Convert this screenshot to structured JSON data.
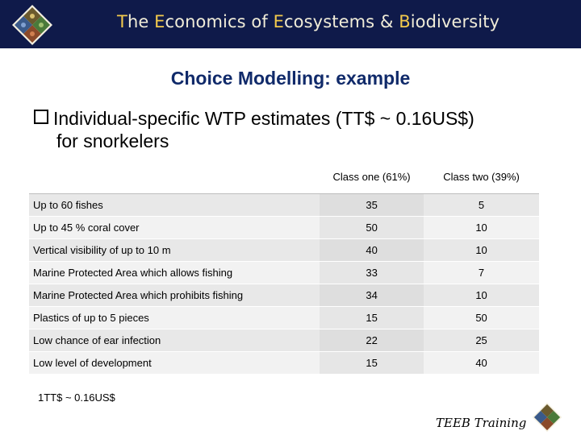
{
  "header": {
    "title_parts": [
      {
        "text": "T",
        "accent": true
      },
      {
        "text": "he ",
        "accent": false
      },
      {
        "text": "E",
        "accent": true
      },
      {
        "text": "conomics of ",
        "accent": false
      },
      {
        "text": "E",
        "accent": true
      },
      {
        "text": "cosystems & ",
        "accent": false
      },
      {
        "text": "B",
        "accent": true
      },
      {
        "text": "iodiversity",
        "accent": false
      }
    ],
    "logo_icon": "teeb-diamond-logo-icon"
  },
  "slide": {
    "title": "Choice Modelling: example",
    "bullet_line1": "Individual-specific WTP estimates (TT$ ~ 0.16US$)",
    "bullet_line2": "for snorkelers"
  },
  "table": {
    "columns": [
      "",
      "Class one (61%)",
      "Class two (39%)"
    ],
    "rows": [
      {
        "label": "Up to 60 fishes",
        "class_one": "35",
        "class_two": "5"
      },
      {
        "label": "Up to 45 % coral cover",
        "class_one": "50",
        "class_two": "10"
      },
      {
        "label": "Vertical visibility of up to 10 m",
        "class_one": "40",
        "class_two": "10"
      },
      {
        "label": "Marine Protected Area which allows fishing",
        "class_one": "33",
        "class_two": "7"
      },
      {
        "label": "Marine Protected Area which prohibits fishing",
        "class_one": "34",
        "class_two": "10"
      },
      {
        "label": "Plastics of up to 5 pieces",
        "class_one": "15",
        "class_two": "50"
      },
      {
        "label": "Low chance of ear infection",
        "class_one": "22",
        "class_two": "25"
      },
      {
        "label": "Low level of development",
        "class_one": "15",
        "class_two": "40"
      }
    ]
  },
  "footer": {
    "footnote": "1TT$ ~ 0.16US$",
    "teeb_training": "TEEB Training",
    "logo_icon": "teeb-diamond-logo-icon"
  },
  "colors": {
    "header_bg": "#0f1a4a",
    "title_blue": "#102a6a",
    "accent_gold": "#f2c94c"
  }
}
